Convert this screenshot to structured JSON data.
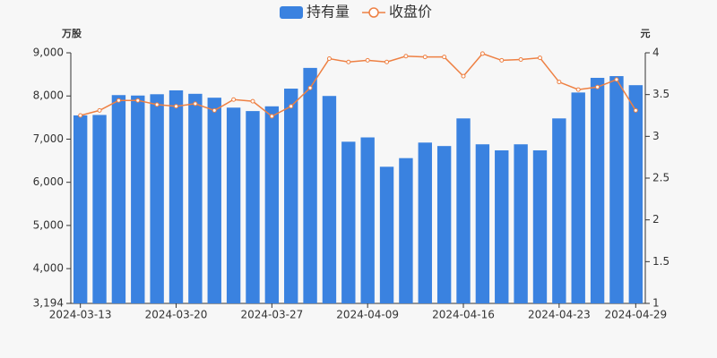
{
  "chart_data": {
    "type": "bar",
    "y_label": "万股",
    "y2_label": "元",
    "categories": [
      "2024-03-13",
      null,
      null,
      null,
      null,
      "2024-03-20",
      null,
      null,
      null,
      null,
      "2024-03-27",
      null,
      null,
      null,
      null,
      "2024-04-09",
      null,
      null,
      null,
      null,
      "2024-04-16",
      null,
      null,
      null,
      null,
      "2024-04-23",
      null,
      null,
      null,
      "2024-04-29"
    ],
    "series": [
      {
        "name": "持有量",
        "type": "bar",
        "color": "#3a82e0",
        "values": [
          7550,
          7560,
          8020,
          8010,
          8040,
          8130,
          8050,
          7960,
          7730,
          7650,
          7760,
          8170,
          8650,
          8000,
          6940,
          7040,
          6360,
          6560,
          6920,
          6840,
          7480,
          6880,
          6740,
          6880,
          6740,
          7480,
          8080,
          8420,
          8460,
          8250
        ]
      },
      {
        "name": "收盘价",
        "type": "line",
        "axis": "y2",
        "color": "#ee8043",
        "values": [
          3.25,
          3.31,
          3.43,
          3.43,
          3.38,
          3.36,
          3.39,
          3.31,
          3.44,
          3.42,
          3.24,
          3.36,
          3.58,
          3.93,
          3.89,
          3.91,
          3.89,
          3.96,
          3.95,
          3.95,
          3.72,
          3.99,
          3.91,
          3.92,
          3.94,
          3.65,
          3.56,
          3.59,
          3.68,
          3.31
        ]
      }
    ],
    "ylim": [
      3194,
      9000
    ],
    "yticks": [
      {
        "value": 3194,
        "label": "3,194"
      },
      {
        "value": 4000,
        "label": "4,000"
      },
      {
        "value": 5000,
        "label": "5,000"
      },
      {
        "value": 6000,
        "label": "6,000"
      },
      {
        "value": 7000,
        "label": "7,000"
      },
      {
        "value": 8000,
        "label": "8,000"
      },
      {
        "value": 9000,
        "label": "9,000"
      }
    ],
    "y2lim": [
      1,
      4
    ],
    "y2ticks": [
      1,
      1.5,
      2,
      2.5,
      3,
      3.5,
      4
    ]
  }
}
